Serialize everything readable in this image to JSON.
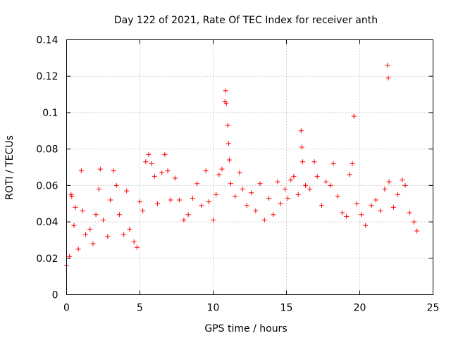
{
  "chart_data": {
    "type": "scatter",
    "title": "Day 122 of 2021, Rate Of TEC Index for receiver anth",
    "xlabel": "GPS time / hours",
    "ylabel": "ROTI / TECUs",
    "xlim": [
      0,
      25
    ],
    "ylim": [
      0,
      0.14
    ],
    "xticks": [
      0,
      5,
      10,
      15,
      20,
      25
    ],
    "xtick_labels": [
      "0",
      "5",
      "10",
      "15",
      "20",
      "25"
    ],
    "yticks": [
      0,
      0.02,
      0.04,
      0.06,
      0.08,
      0.1,
      0.12,
      0.14
    ],
    "ytick_labels": [
      "0",
      "0.02",
      "0.04",
      "0.06",
      "0.08",
      "0.1",
      "0.12",
      "0.14"
    ],
    "grid": true,
    "marker": "+",
    "series_color": "#ff0000",
    "series": [
      {
        "name": "ROTI",
        "points": [
          [
            0.0,
            0.016
          ],
          [
            0.2,
            0.021
          ],
          [
            0.3,
            0.055
          ],
          [
            0.35,
            0.054
          ],
          [
            0.5,
            0.038
          ],
          [
            0.6,
            0.048
          ],
          [
            0.8,
            0.025
          ],
          [
            1.0,
            0.068
          ],
          [
            1.1,
            0.046
          ],
          [
            1.3,
            0.033
          ],
          [
            1.6,
            0.036
          ],
          [
            1.8,
            0.028
          ],
          [
            2.0,
            0.044
          ],
          [
            2.2,
            0.058
          ],
          [
            2.3,
            0.069
          ],
          [
            2.5,
            0.041
          ],
          [
            2.8,
            0.032
          ],
          [
            3.0,
            0.052
          ],
          [
            3.2,
            0.068
          ],
          [
            3.4,
            0.06
          ],
          [
            3.6,
            0.044
          ],
          [
            3.9,
            0.033
          ],
          [
            4.1,
            0.057
          ],
          [
            4.3,
            0.036
          ],
          [
            4.6,
            0.029
          ],
          [
            4.8,
            0.026
          ],
          [
            5.0,
            0.051
          ],
          [
            5.2,
            0.046
          ],
          [
            5.4,
            0.073
          ],
          [
            5.6,
            0.077
          ],
          [
            5.8,
            0.072
          ],
          [
            6.0,
            0.065
          ],
          [
            6.2,
            0.05
          ],
          [
            6.5,
            0.067
          ],
          [
            6.7,
            0.077
          ],
          [
            6.9,
            0.068
          ],
          [
            7.1,
            0.052
          ],
          [
            7.4,
            0.064
          ],
          [
            7.7,
            0.052
          ],
          [
            8.0,
            0.041
          ],
          [
            8.3,
            0.044
          ],
          [
            8.6,
            0.053
          ],
          [
            8.9,
            0.061
          ],
          [
            9.2,
            0.049
          ],
          [
            9.5,
            0.068
          ],
          [
            9.7,
            0.051
          ],
          [
            10.0,
            0.041
          ],
          [
            10.2,
            0.055
          ],
          [
            10.4,
            0.066
          ],
          [
            10.6,
            0.069
          ],
          [
            10.8,
            0.106
          ],
          [
            10.85,
            0.112
          ],
          [
            10.9,
            0.105
          ],
          [
            11.0,
            0.093
          ],
          [
            11.05,
            0.083
          ],
          [
            11.1,
            0.074
          ],
          [
            11.2,
            0.061
          ],
          [
            11.5,
            0.054
          ],
          [
            11.8,
            0.067
          ],
          [
            12.0,
            0.058
          ],
          [
            12.3,
            0.049
          ],
          [
            12.6,
            0.056
          ],
          [
            12.9,
            0.046
          ],
          [
            13.2,
            0.061
          ],
          [
            13.5,
            0.041
          ],
          [
            13.8,
            0.053
          ],
          [
            14.1,
            0.044
          ],
          [
            14.4,
            0.062
          ],
          [
            14.6,
            0.05
          ],
          [
            14.9,
            0.058
          ],
          [
            15.1,
            0.053
          ],
          [
            15.3,
            0.063
          ],
          [
            15.5,
            0.065
          ],
          [
            15.8,
            0.055
          ],
          [
            16.0,
            0.09
          ],
          [
            16.05,
            0.081
          ],
          [
            16.1,
            0.073
          ],
          [
            16.3,
            0.06
          ],
          [
            16.6,
            0.058
          ],
          [
            16.9,
            0.073
          ],
          [
            17.1,
            0.065
          ],
          [
            17.4,
            0.049
          ],
          [
            17.7,
            0.062
          ],
          [
            18.0,
            0.06
          ],
          [
            18.2,
            0.072
          ],
          [
            18.5,
            0.054
          ],
          [
            18.8,
            0.045
          ],
          [
            19.1,
            0.043
          ],
          [
            19.3,
            0.066
          ],
          [
            19.5,
            0.072
          ],
          [
            19.6,
            0.098
          ],
          [
            19.8,
            0.05
          ],
          [
            20.1,
            0.044
          ],
          [
            20.4,
            0.038
          ],
          [
            20.8,
            0.049
          ],
          [
            21.1,
            0.052
          ],
          [
            21.4,
            0.046
          ],
          [
            21.7,
            0.058
          ],
          [
            21.9,
            0.126
          ],
          [
            21.95,
            0.119
          ],
          [
            22.0,
            0.062
          ],
          [
            22.3,
            0.048
          ],
          [
            22.6,
            0.055
          ],
          [
            22.9,
            0.063
          ],
          [
            23.1,
            0.06
          ],
          [
            23.4,
            0.045
          ],
          [
            23.7,
            0.04
          ],
          [
            23.9,
            0.035
          ]
        ]
      }
    ]
  }
}
